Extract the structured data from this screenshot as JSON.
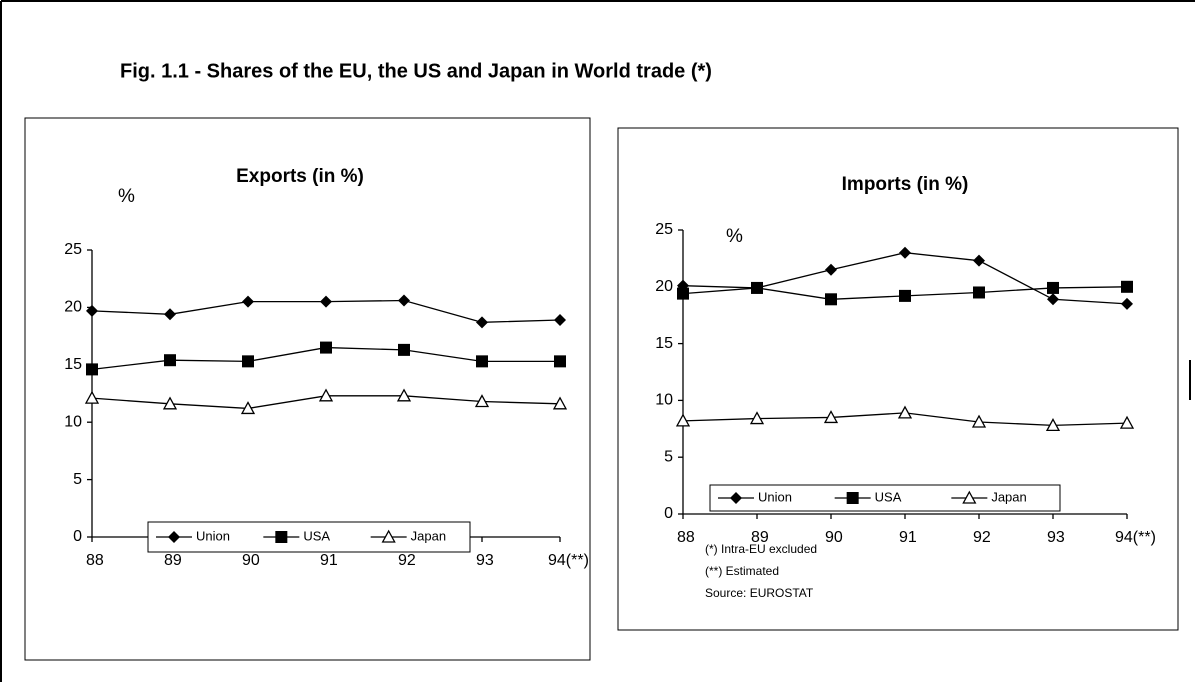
{
  "title": "Fig. 1.1 - Shares of the EU, the US and Japan in World trade (*)",
  "chart_data": [
    {
      "type": "line",
      "title": "Exports (in %)",
      "ylabel": "%",
      "categories": [
        "88",
        "89",
        "90",
        "91",
        "92",
        "93",
        "94(**)"
      ],
      "ylim": [
        0,
        25
      ],
      "yticks": [
        0,
        5,
        10,
        15,
        20,
        25
      ],
      "grid": false,
      "legend": "lower center",
      "series": [
        {
          "name": "Union",
          "color": "#000000",
          "marker": "diamond",
          "values": [
            19.7,
            19.4,
            20.5,
            20.5,
            20.6,
            18.7,
            18.9
          ]
        },
        {
          "name": "USA",
          "color": "#000000",
          "marker": "square",
          "values": [
            14.6,
            15.4,
            15.3,
            16.5,
            16.3,
            15.3,
            15.3
          ]
        },
        {
          "name": "Japan",
          "color": "#000000",
          "marker": "triangle",
          "values": [
            12.1,
            11.6,
            11.2,
            12.3,
            12.3,
            11.8,
            11.6
          ]
        }
      ]
    },
    {
      "type": "line",
      "title": "Imports (in %)",
      "ylabel": "%",
      "categories": [
        "88",
        "89",
        "90",
        "91",
        "92",
        "93",
        "94(**)"
      ],
      "ylim": [
        0,
        25
      ],
      "yticks": [
        0,
        5,
        10,
        15,
        20,
        25
      ],
      "grid": false,
      "legend": "lower center",
      "series": [
        {
          "name": "Union",
          "color": "#000000",
          "marker": "diamond",
          "values": [
            20.1,
            19.9,
            21.5,
            23.0,
            22.3,
            18.9,
            18.5
          ]
        },
        {
          "name": "USA",
          "color": "#000000",
          "marker": "square",
          "values": [
            19.4,
            19.9,
            18.9,
            19.2,
            19.5,
            19.9,
            20.0
          ]
        },
        {
          "name": "Japan",
          "color": "#000000",
          "marker": "triangle",
          "values": [
            8.2,
            8.4,
            8.5,
            8.9,
            8.1,
            7.8,
            8.0
          ]
        }
      ],
      "notes": [
        "(*) Intra-EU excluded",
        "(**) Estimated",
        "Source: EUROSTAT"
      ]
    }
  ]
}
